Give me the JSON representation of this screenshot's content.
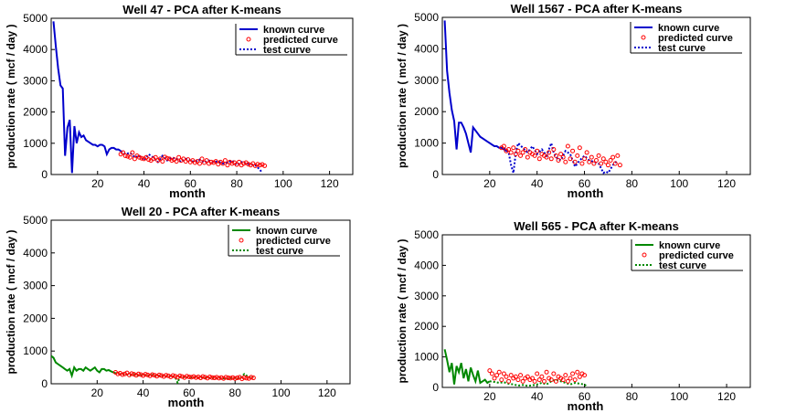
{
  "chart_data": [
    {
      "type": "line",
      "title": "Well 47 - PCA after K-means",
      "xlabel": "month",
      "ylabel": "production rate ( mcf / day )",
      "xlim": [
        0,
        130
      ],
      "ylim": [
        0,
        5000
      ],
      "xticks": [
        20,
        40,
        60,
        80,
        100,
        120
      ],
      "yticks": [
        0,
        1000,
        2000,
        3000,
        4000,
        5000
      ],
      "grid": false,
      "legend_position": "top-right",
      "color": "#0000cc",
      "series": [
        {
          "name": "known curve",
          "style": "solid",
          "x": [
            1,
            2,
            3,
            4,
            5,
            6,
            7,
            8,
            9,
            10,
            11,
            12,
            13,
            14,
            15,
            16,
            17,
            18,
            19,
            20,
            21,
            22,
            23,
            24,
            25,
            26,
            27,
            28,
            29,
            30
          ],
          "y": [
            4900,
            4100,
            3400,
            2850,
            2750,
            600,
            1500,
            1750,
            50,
            1550,
            1000,
            1350,
            1200,
            1250,
            1100,
            1050,
            1000,
            950,
            950,
            900,
            950,
            950,
            900,
            650,
            800,
            850,
            850,
            800,
            800,
            750
          ]
        },
        {
          "name": "predicted curve",
          "style": "circles",
          "x": [
            30,
            31,
            32,
            33,
            34,
            35,
            36,
            37,
            38,
            39,
            40,
            41,
            42,
            43,
            44,
            45,
            46,
            47,
            48,
            49,
            50,
            51,
            52,
            53,
            54,
            55,
            56,
            57,
            58,
            59,
            60,
            61,
            62,
            63,
            64,
            65,
            66,
            67,
            68,
            69,
            70,
            71,
            72,
            73,
            74,
            75,
            76,
            77,
            78,
            79,
            80,
            81,
            82,
            83,
            84,
            85,
            86,
            87,
            88,
            89,
            90,
            91,
            92
          ],
          "y": [
            650,
            700,
            600,
            580,
            550,
            700,
            500,
            600,
            550,
            520,
            500,
            550,
            480,
            450,
            500,
            550,
            450,
            500,
            420,
            560,
            520,
            500,
            450,
            480,
            420,
            550,
            450,
            500,
            420,
            480,
            400,
            450,
            380,
            420,
            350,
            500,
            380,
            450,
            350,
            400,
            380,
            420,
            330,
            400,
            350,
            450,
            300,
            400,
            350,
            380,
            320,
            400,
            300,
            350,
            380,
            330,
            300,
            350,
            280,
            330,
            300,
            320,
            280
          ]
        },
        {
          "name": "test curve",
          "style": "dotted",
          "x": [
            30,
            32,
            34,
            36,
            38,
            40,
            42,
            44,
            46,
            48,
            50,
            52,
            54,
            56,
            58,
            60,
            62,
            64,
            66,
            68,
            70,
            72,
            74,
            76,
            78,
            80,
            82,
            84,
            86,
            88,
            90,
            91
          ],
          "y": [
            750,
            650,
            700,
            550,
            600,
            450,
            650,
            550,
            400,
            600,
            450,
            550,
            500,
            400,
            500,
            450,
            400,
            480,
            380,
            450,
            400,
            420,
            350,
            380,
            450,
            300,
            400,
            350,
            320,
            300,
            150,
            50
          ]
        }
      ]
    },
    {
      "type": "line",
      "title": "Well 1567 - PCA after K-means",
      "xlabel": "month",
      "ylabel": "production rate ( mcf / day )",
      "xlim": [
        0,
        130
      ],
      "ylim": [
        0,
        5000
      ],
      "xticks": [
        20,
        40,
        60,
        80,
        100,
        120
      ],
      "yticks": [
        0,
        1000,
        2000,
        3000,
        4000,
        5000
      ],
      "grid": false,
      "legend_position": "top-right",
      "color": "#0000cc",
      "series": [
        {
          "name": "known curve",
          "style": "solid",
          "x": [
            1,
            2,
            3,
            4,
            5,
            6,
            7,
            8,
            9,
            10,
            11,
            12,
            13,
            14,
            15,
            16,
            17,
            18,
            19,
            20,
            21,
            22,
            23,
            24,
            25,
            26,
            27
          ],
          "y": [
            4900,
            3300,
            2600,
            2050,
            1700,
            800,
            1650,
            1650,
            1500,
            1300,
            1000,
            700,
            1500,
            1400,
            1300,
            1200,
            1150,
            1100,
            1050,
            1000,
            950,
            900,
            900,
            850,
            850,
            800,
            750
          ]
        },
        {
          "name": "predicted curve",
          "style": "circles",
          "x": [
            25,
            26,
            27,
            28,
            29,
            30,
            31,
            32,
            33,
            34,
            35,
            36,
            37,
            38,
            39,
            40,
            41,
            42,
            43,
            44,
            45,
            46,
            47,
            48,
            49,
            50,
            51,
            52,
            53,
            54,
            55,
            56,
            57,
            58,
            59,
            60,
            61,
            62,
            63,
            64,
            65,
            66,
            67,
            68,
            69,
            70,
            71,
            72,
            73,
            74,
            75
          ],
          "y": [
            850,
            900,
            750,
            800,
            700,
            850,
            650,
            750,
            600,
            700,
            800,
            550,
            700,
            650,
            600,
            750,
            500,
            650,
            600,
            550,
            700,
            500,
            800,
            600,
            450,
            650,
            550,
            400,
            900,
            500,
            750,
            400,
            600,
            850,
            350,
            500,
            700,
            400,
            550,
            350,
            450,
            600,
            350,
            500,
            400,
            300,
            450,
            550,
            350,
            600,
            300
          ]
        },
        {
          "name": "test curve",
          "style": "dotted",
          "x": [
            26,
            28,
            29,
            30,
            31,
            32,
            34,
            36,
            38,
            40,
            42,
            44,
            46,
            47,
            48,
            50,
            52,
            54,
            56,
            58,
            60,
            62,
            64,
            66,
            68,
            69,
            70,
            72,
            74
          ],
          "y": [
            850,
            700,
            300,
            50,
            700,
            1000,
            850,
            700,
            900,
            650,
            800,
            600,
            1000,
            700,
            550,
            450,
            750,
            650,
            250,
            450,
            600,
            450,
            400,
            350,
            50,
            100,
            50,
            300,
            450
          ]
        }
      ]
    },
    {
      "type": "line",
      "title": "Well 20 - PCA after K-means",
      "xlabel": "month",
      "ylabel": "production rate ( mcf / day )",
      "xlim": [
        0,
        130
      ],
      "ylim": [
        0,
        5000
      ],
      "xticks": [
        20,
        40,
        60,
        80,
        100,
        120
      ],
      "yticks": [
        0,
        1000,
        2000,
        3000,
        4000,
        5000
      ],
      "grid": false,
      "legend_position": "top-right",
      "color": "#008800",
      "series": [
        {
          "name": "known curve",
          "style": "solid",
          "x": [
            0,
            1,
            2,
            3,
            4,
            5,
            6,
            7,
            8,
            9,
            10,
            11,
            12,
            13,
            14,
            15,
            16,
            17,
            18,
            19,
            20,
            21,
            22,
            23,
            24,
            25,
            26,
            27,
            28
          ],
          "y": [
            850,
            800,
            650,
            600,
            550,
            500,
            450,
            400,
            450,
            250,
            500,
            400,
            450,
            450,
            400,
            500,
            450,
            400,
            450,
            500,
            400,
            350,
            450,
            450,
            400,
            420,
            380,
            350,
            320
          ]
        },
        {
          "name": "predicted curve",
          "style": "circles",
          "x": [
            28,
            29,
            30,
            31,
            32,
            33,
            34,
            35,
            36,
            37,
            38,
            39,
            40,
            41,
            42,
            43,
            44,
            45,
            46,
            47,
            48,
            49,
            50,
            51,
            52,
            53,
            54,
            55,
            56,
            57,
            58,
            59,
            60,
            61,
            62,
            63,
            64,
            65,
            66,
            67,
            68,
            69,
            70,
            71,
            72,
            73,
            74,
            75,
            76,
            77,
            78,
            79,
            80,
            81,
            82,
            83,
            84,
            85,
            86,
            87,
            88
          ],
          "y": [
            350,
            300,
            320,
            280,
            300,
            330,
            270,
            310,
            290,
            260,
            300,
            280,
            250,
            290,
            270,
            240,
            280,
            260,
            230,
            270,
            250,
            220,
            260,
            240,
            210,
            250,
            230,
            200,
            240,
            220,
            190,
            230,
            210,
            200,
            220,
            190,
            210,
            180,
            220,
            200,
            170,
            210,
            190,
            180,
            200,
            170,
            190,
            160,
            200,
            180,
            170,
            190,
            160,
            180,
            200,
            150,
            190,
            170,
            160,
            200,
            180
          ]
        },
        {
          "name": "test curve",
          "style": "dotted",
          "x": [
            28,
            30,
            32,
            34,
            36,
            38,
            40,
            42,
            44,
            46,
            48,
            50,
            52,
            54,
            55,
            56,
            58,
            60,
            62,
            64,
            66,
            68,
            70,
            72,
            74,
            76,
            78,
            80,
            82,
            84,
            86,
            88
          ],
          "y": [
            330,
            290,
            300,
            260,
            290,
            250,
            280,
            240,
            270,
            230,
            250,
            220,
            240,
            200,
            30,
            210,
            200,
            190,
            200,
            180,
            190,
            170,
            180,
            160,
            180,
            150,
            170,
            180,
            150,
            300,
            200,
            200
          ]
        }
      ]
    },
    {
      "type": "line",
      "title": "Well 565 - PCA after K-means",
      "xlabel": "month",
      "ylabel": "production rate ( mcf / day )",
      "xlim": [
        0,
        130
      ],
      "ylim": [
        0,
        5000
      ],
      "xticks": [
        20,
        40,
        60,
        80,
        100,
        120
      ],
      "yticks": [
        0,
        1000,
        2000,
        3000,
        4000,
        5000
      ],
      "grid": false,
      "legend_position": "top-right",
      "color": "#008800",
      "series": [
        {
          "name": "known curve",
          "style": "solid",
          "x": [
            1,
            2,
            3,
            4,
            5,
            6,
            7,
            8,
            9,
            10,
            11,
            12,
            13,
            14,
            15,
            16,
            17,
            18,
            19,
            20
          ],
          "y": [
            1250,
            900,
            500,
            800,
            100,
            700,
            500,
            800,
            300,
            600,
            200,
            650,
            400,
            200,
            550,
            150,
            200,
            250,
            150,
            200
          ]
        },
        {
          "name": "predicted curve",
          "style": "circles",
          "x": [
            20,
            21,
            22,
            23,
            24,
            25,
            26,
            27,
            28,
            29,
            30,
            31,
            32,
            33,
            34,
            35,
            36,
            37,
            38,
            39,
            40,
            41,
            42,
            43,
            44,
            45,
            46,
            47,
            48,
            49,
            50,
            51,
            52,
            53,
            54,
            55,
            56,
            57,
            58,
            59,
            60
          ],
          "y": [
            550,
            450,
            300,
            400,
            500,
            250,
            450,
            350,
            200,
            400,
            300,
            350,
            250,
            400,
            200,
            300,
            350,
            250,
            300,
            200,
            450,
            250,
            350,
            200,
            500,
            300,
            250,
            450,
            200,
            350,
            300,
            250,
            400,
            200,
            300,
            450,
            250,
            500,
            350,
            450,
            400
          ]
        },
        {
          "name": "test curve",
          "style": "dotted",
          "x": [
            20,
            22,
            24,
            26,
            28,
            30,
            32,
            34,
            36,
            38,
            40,
            42,
            44,
            46,
            48,
            50,
            52,
            54,
            56,
            58,
            60,
            61
          ],
          "y": [
            200,
            180,
            150,
            170,
            120,
            100,
            60,
            80,
            50,
            70,
            100,
            150,
            100,
            200,
            250,
            200,
            150,
            100,
            150,
            120,
            100,
            30
          ]
        }
      ]
    }
  ]
}
